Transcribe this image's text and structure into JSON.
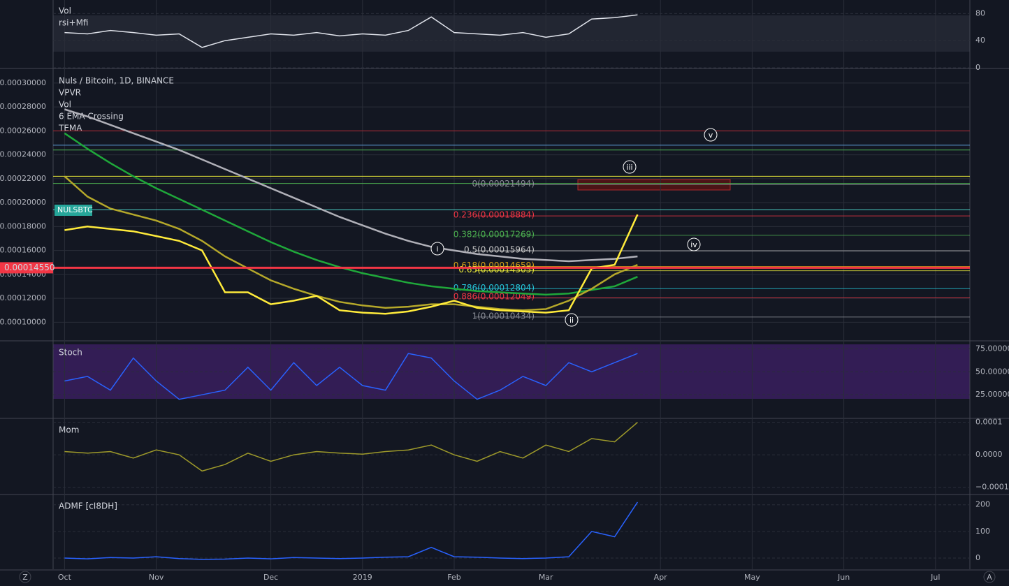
{
  "chart_data": [
    {
      "type": "line",
      "indicators": [
        "Vol",
        "rsi+Mfi"
      ],
      "ylim": [
        0,
        100
      ],
      "yticks": [
        80,
        40,
        0
      ],
      "series": [
        {
          "color": "#e0e3eb",
          "values": [
            52,
            50,
            55,
            52,
            48,
            50,
            30,
            40,
            45,
            50,
            48,
            52,
            47,
            50,
            48,
            55,
            75,
            52,
            50,
            48,
            52,
            45,
            50,
            72,
            74,
            78,
            null,
            null,
            null,
            null,
            null,
            null,
            null,
            null,
            null,
            null,
            null,
            null,
            null,
            null
          ]
        }
      ]
    },
    {
      "type": "line",
      "title": "Nuls / Bitcoin, 1D, BINANCE",
      "indicators": [
        "VPVR",
        "Vol",
        "6 EMA Crossing",
        "TEMA"
      ],
      "symbol": "NULSBTC",
      "last_price": {
        "value": 0.0001455,
        "label": "0.00014550"
      },
      "ylim": [
        8.5e-05,
        0.000311
      ],
      "yticks": [
        {
          "value": 0.0003,
          "label": "0.00030000"
        },
        {
          "value": 0.00028,
          "label": "0.00028000"
        },
        {
          "value": 0.00026,
          "label": "0.00026000"
        },
        {
          "value": 0.00024,
          "label": "0.00024000"
        },
        {
          "value": 0.00022,
          "label": "0.00022000"
        },
        {
          "value": 0.0002,
          "label": "0.00020000"
        },
        {
          "value": 0.00018,
          "label": "0.00018000"
        },
        {
          "value": 0.00016,
          "label": "0.00016000"
        },
        {
          "value": 0.00014,
          "label": "0.00014000"
        },
        {
          "value": 0.00012,
          "label": "0.00012000"
        },
        {
          "value": 0.0001,
          "label": "0.00010000"
        }
      ],
      "fib_levels": [
        {
          "label": "0(0.00021494)",
          "value": 0.00021494,
          "color": "#8a8d96"
        },
        {
          "label": "0.236(0.00018884)",
          "value": 0.00018884,
          "color": "#f23645"
        },
        {
          "label": "0.382(0.00017269)",
          "value": 0.00017269,
          "color": "#4caf50"
        },
        {
          "label": "0.5(0.00015964)",
          "value": 0.00015964,
          "color": "#c8c8c8"
        },
        {
          "label": "0.618(0.00014659)",
          "value": 0.00014659,
          "color": "#d4a017"
        },
        {
          "label": "0.65(0.00014305)",
          "value": 0.00014305,
          "color": "#e8e83a"
        },
        {
          "label": "0.786(0.00012804)",
          "value": 0.00012804,
          "color": "#26c6da"
        },
        {
          "label": "0.886(0.00012049)",
          "value": 0.00012049,
          "color": "#f23645"
        },
        {
          "label": "1(0.00010434)",
          "value": 0.00010434,
          "color": "#8a8d96"
        }
      ],
      "levels": [
        {
          "value": 0.00026,
          "color": "#b22833"
        },
        {
          "value": 0.000248,
          "color": "#5b9bd5"
        },
        {
          "value": 0.000244,
          "color": "#4caf50"
        },
        {
          "value": 0.000222,
          "color": "#e8e83a"
        },
        {
          "value": 0.000216,
          "color": "#4caf50"
        },
        {
          "value": 0.000194,
          "color": "#4dd0c4"
        }
      ],
      "annotations": [
        "i",
        "ii",
        "iii",
        "iv",
        "v"
      ],
      "series": [
        {
          "color": "#b0b0b8",
          "values": [
            0.000278,
            0.000272,
            0.000265,
            0.000258,
            0.000251,
            0.000244,
            0.000236,
            0.000228,
            0.00022,
            0.000212,
            0.000204,
            0.000196,
            0.000188,
            0.000181,
            0.000174,
            0.000168,
            0.000163,
            0.00016,
            0.000157,
            0.000155,
            0.000153,
            0.000152,
            0.000151,
            0.000152,
            0.000153,
            0.000155,
            null,
            null,
            null,
            null,
            null,
            null,
            null,
            null,
            null,
            null,
            null,
            null,
            null,
            null
          ]
        },
        {
          "color": "#1fa83a",
          "values": [
            0.000258,
            0.000245,
            0.000233,
            0.000222,
            0.000212,
            0.000203,
            0.000194,
            0.000185,
            0.000176,
            0.000167,
            0.000159,
            0.000152,
            0.000146,
            0.000141,
            0.000137,
            0.000133,
            0.00013,
            0.000128,
            0.000126,
            0.000125,
            0.000124,
            0.000123,
            0.000124,
            0.000127,
            0.00013,
            0.000138,
            null,
            null,
            null,
            null,
            null,
            null,
            null,
            null,
            null,
            null,
            null,
            null,
            null,
            null
          ]
        },
        {
          "color": "#b5a82a",
          "values": [
            0.000222,
            0.000205,
            0.000195,
            0.00019,
            0.000185,
            0.000178,
            0.000168,
            0.000155,
            0.000145,
            0.000135,
            0.000128,
            0.000122,
            0.000117,
            0.000114,
            0.000112,
            0.000113,
            0.000115,
            0.000115,
            0.000113,
            0.000111,
            0.00011,
            0.000111,
            0.000118,
            0.000128,
            0.00014,
            0.000148,
            null,
            null,
            null,
            null,
            null,
            null,
            null,
            null,
            null,
            null,
            null,
            null,
            null,
            null
          ]
        },
        {
          "color": "#ffeb3b",
          "values": [
            0.000177,
            0.00018,
            0.000178,
            0.000176,
            0.000172,
            0.000168,
            0.00016,
            0.000125,
            0.000125,
            0.000115,
            0.000118,
            0.000122,
            0.00011,
            0.000108,
            0.000107,
            0.000109,
            0.000113,
            0.000118,
            0.000112,
            0.00011,
            0.000109,
            0.000108,
            0.00011,
            0.000145,
            0.000148,
            0.00019,
            null,
            null,
            null,
            null,
            null,
            null,
            null,
            null,
            null,
            null,
            null,
            null,
            null,
            null
          ]
        }
      ]
    },
    {
      "type": "line",
      "title": "Stoch",
      "ylim": [
        0,
        83
      ],
      "yticks": [
        {
          "value": 75,
          "label": "75.00000"
        },
        {
          "value": 50,
          "label": "50.00000"
        },
        {
          "value": 25,
          "label": "25.00000"
        }
      ],
      "series": [
        {
          "color": "#2962ff",
          "values": [
            40,
            45,
            30,
            65,
            40,
            20,
            25,
            30,
            55,
            30,
            60,
            35,
            55,
            35,
            30,
            70,
            65,
            40,
            20,
            30,
            45,
            35,
            60,
            50,
            60,
            70,
            null,
            null,
            null,
            null,
            null,
            null,
            null,
            null,
            null,
            null,
            null,
            null,
            null,
            null
          ]
        }
      ]
    },
    {
      "type": "line",
      "title": "Mom",
      "ylim": [
        -0.00012,
        0.00011
      ],
      "yticks": [
        {
          "value": 0.0001,
          "label": "0.0001"
        },
        {
          "value": 0,
          "label": "0.0000"
        },
        {
          "value": -0.0001,
          "label": "−0.0001"
        }
      ],
      "series": [
        {
          "color": "#9e9a2a",
          "values": [
            1e-05,
            5e-06,
            1e-05,
            -1e-05,
            1.5e-05,
            0,
            -5e-05,
            -3e-05,
            5e-06,
            -2e-05,
            0,
            1e-05,
            5e-06,
            2e-06,
            1e-05,
            1.5e-05,
            3e-05,
            0,
            -2e-05,
            1e-05,
            -1e-05,
            3e-05,
            1e-05,
            5e-05,
            4e-05,
            0.0001,
            null,
            null,
            null,
            null,
            null,
            null,
            null,
            null,
            null,
            null,
            null,
            null,
            null,
            null
          ]
        }
      ]
    },
    {
      "type": "line",
      "title": "ADMF [cI8DH]",
      "ylim": [
        -42,
        236
      ],
      "yticks": [
        200,
        100,
        0
      ],
      "categories": [
        "Oct",
        null,
        null,
        null,
        "Nov",
        null,
        null,
        null,
        null,
        "Dec",
        null,
        null,
        null,
        "2019",
        null,
        null,
        null,
        "Feb",
        null,
        null,
        null,
        "Mar",
        null,
        null,
        null,
        null,
        "Apr",
        null,
        null,
        null,
        "May",
        null,
        null,
        null,
        "Jun",
        null,
        null,
        null,
        "Jul",
        null
      ],
      "series": [
        {
          "color": "#2962ff",
          "values": [
            0,
            -3,
            2,
            0,
            5,
            -2,
            -5,
            -4,
            0,
            -3,
            2,
            0,
            -2,
            0,
            3,
            5,
            40,
            5,
            3,
            0,
            -2,
            0,
            5,
            100,
            80,
            210,
            null,
            null,
            null,
            null,
            null,
            null,
            null,
            null,
            null,
            null,
            null,
            null,
            null,
            null
          ]
        }
      ]
    }
  ],
  "ui": {
    "zoom_button": "Z",
    "auto_button": "A"
  }
}
